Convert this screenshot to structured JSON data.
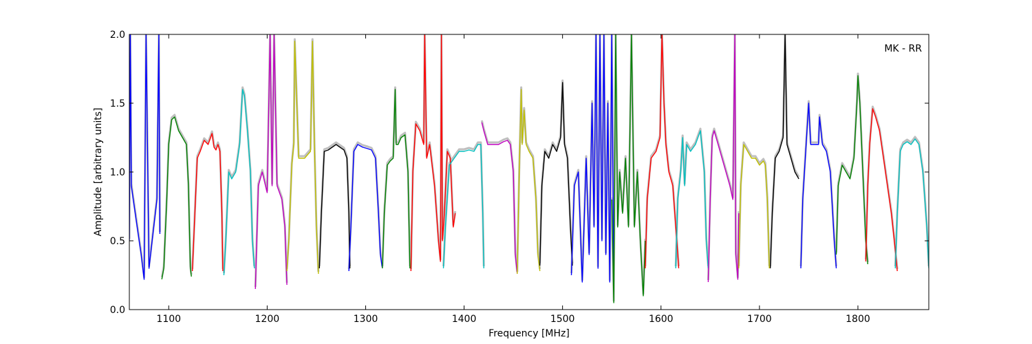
{
  "chart_data": {
    "type": "line",
    "annotation": "MK - RR",
    "xlabel": "Frequency [MHz]",
    "ylabel": "Amplitude [arbitrary units]",
    "xlim": [
      1060,
      1872
    ],
    "ylim": [
      0.0,
      2.0
    ],
    "grid": false,
    "x_ticks": [
      1100,
      1200,
      1300,
      1400,
      1500,
      1600,
      1700,
      1800
    ],
    "x_tick_labels": [
      "1100",
      "1200",
      "1300",
      "1400",
      "1500",
      "1600",
      "1700",
      "1800"
    ],
    "y_ticks": [
      0.0,
      0.5,
      1.0,
      1.5,
      2.0
    ],
    "y_tick_labels": [
      "0.0",
      "0.5",
      "1.0",
      "1.5",
      "2.0"
    ],
    "background_series_color": "#bfbfbf",
    "bands": [
      {
        "color": "#0000ff",
        "x": [
          1060,
          1061,
          1062,
          1064,
          1068,
          1072,
          1075,
          1077,
          1080,
          1084,
          1088,
          1090,
          1091
        ],
        "y": [
          0.5,
          2.0,
          0.9,
          0.8,
          0.6,
          0.4,
          0.22,
          2.0,
          0.3,
          0.55,
          0.8,
          2.0,
          0.55
        ]
      },
      {
        "color": "#008000",
        "x": [
          1093,
          1095,
          1098,
          1100,
          1103,
          1106,
          1110,
          1114,
          1118,
          1120,
          1122,
          1123
        ],
        "y": [
          0.22,
          0.3,
          0.8,
          1.2,
          1.38,
          1.4,
          1.3,
          1.25,
          1.2,
          0.9,
          0.3,
          0.24
        ]
      },
      {
        "color": "#ff0000",
        "x": [
          1124,
          1126,
          1129,
          1132,
          1136,
          1140,
          1144,
          1146,
          1148,
          1150,
          1152,
          1154,
          1155
        ],
        "y": [
          0.28,
          0.6,
          1.1,
          1.15,
          1.23,
          1.2,
          1.28,
          1.18,
          1.16,
          1.2,
          1.15,
          0.7,
          0.28
        ]
      },
      {
        "color": "#00bfbf",
        "x": [
          1156,
          1158,
          1161,
          1164,
          1168,
          1172,
          1175,
          1177,
          1180,
          1183,
          1185,
          1187
        ],
        "y": [
          0.25,
          0.5,
          1.0,
          0.95,
          1.0,
          1.2,
          1.6,
          1.55,
          1.3,
          1.0,
          0.5,
          0.3
        ]
      },
      {
        "color": "#bf00bf",
        "x": [
          1188,
          1189,
          1191,
          1195,
          1200,
          1203,
          1205,
          1207,
          1210,
          1215,
          1218,
          1220
        ],
        "y": [
          0.15,
          0.4,
          0.9,
          1.0,
          0.85,
          2.0,
          0.9,
          2.0,
          0.9,
          0.8,
          0.6,
          0.18
        ]
      },
      {
        "color": "#bfbf00",
        "x": [
          1220,
          1222,
          1225,
          1227,
          1228,
          1232,
          1238,
          1244,
          1246,
          1248,
          1250,
          1252
        ],
        "y": [
          0.28,
          0.5,
          1.05,
          1.2,
          1.95,
          1.1,
          1.1,
          1.15,
          1.95,
          1.2,
          0.6,
          0.26
        ]
      },
      {
        "color": "#000000",
        "x": [
          1253,
          1255,
          1258,
          1262,
          1266,
          1270,
          1274,
          1278,
          1281,
          1283,
          1284
        ],
        "y": [
          0.3,
          0.7,
          1.15,
          1.16,
          1.18,
          1.2,
          1.18,
          1.16,
          1.1,
          0.7,
          0.3
        ]
      },
      {
        "color": "#0000ff",
        "x": [
          1283,
          1285,
          1288,
          1292,
          1297,
          1302,
          1306,
          1310,
          1313,
          1315,
          1317
        ],
        "y": [
          0.28,
          0.6,
          1.15,
          1.2,
          1.18,
          1.17,
          1.16,
          1.1,
          0.7,
          0.4,
          0.3
        ]
      },
      {
        "color": "#008000",
        "x": [
          1317,
          1319,
          1322,
          1325,
          1328,
          1330,
          1331,
          1333,
          1336,
          1340,
          1343,
          1345
        ],
        "y": [
          0.3,
          0.7,
          1.05,
          1.08,
          1.1,
          1.6,
          1.2,
          1.2,
          1.25,
          1.27,
          1.0,
          0.3
        ]
      },
      {
        "color": "#ff0000",
        "x": [
          1346,
          1348,
          1351,
          1355,
          1359,
          1360,
          1362,
          1365,
          1370,
          1372,
          1374,
          1376,
          1377,
          1378,
          1380,
          1383,
          1386,
          1389,
          1391
        ],
        "y": [
          0.28,
          1.0,
          1.35,
          1.3,
          1.2,
          2.0,
          1.1,
          1.2,
          0.9,
          0.7,
          0.5,
          0.35,
          2.0,
          0.5,
          0.7,
          1.15,
          1.1,
          0.6,
          0.7
        ]
      },
      {
        "color": "#00bfbf",
        "x": [
          1379,
          1381,
          1385,
          1390,
          1395,
          1400,
          1405,
          1410,
          1414,
          1417,
          1419,
          1420
        ],
        "y": [
          0.3,
          0.6,
          1.05,
          1.1,
          1.15,
          1.15,
          1.16,
          1.15,
          1.2,
          1.2,
          0.7,
          0.3
        ]
      },
      {
        "color": "#bf00bf",
        "x": [
          1418,
          1420,
          1424,
          1430,
          1435,
          1440,
          1444,
          1447,
          1450,
          1452,
          1454
        ],
        "y": [
          1.36,
          1.3,
          1.2,
          1.2,
          1.2,
          1.22,
          1.23,
          1.2,
          1.0,
          0.4,
          0.26
        ]
      },
      {
        "color": "#bfbf00",
        "x": [
          1454,
          1456,
          1458,
          1459,
          1461,
          1463,
          1466,
          1470,
          1473,
          1475,
          1477
        ],
        "y": [
          0.26,
          1.0,
          1.6,
          1.2,
          1.45,
          1.2,
          1.15,
          1.1,
          0.8,
          0.4,
          0.28
        ]
      },
      {
        "color": "#000000",
        "x": [
          1477,
          1479,
          1482,
          1486,
          1490,
          1494,
          1498,
          1500,
          1502,
          1505,
          1508,
          1510
        ],
        "y": [
          0.32,
          0.9,
          1.15,
          1.1,
          1.2,
          1.15,
          1.25,
          1.65,
          1.2,
          1.1,
          0.6,
          0.32
        ]
      },
      {
        "color": "#0000ff",
        "x": [
          1509,
          1512,
          1516,
          1520,
          1524,
          1527,
          1530,
          1532,
          1534,
          1536,
          1538,
          1540,
          1542,
          1544,
          1546,
          1548,
          1550,
          1552
        ],
        "y": [
          0.25,
          0.9,
          1.0,
          0.2,
          1.1,
          0.4,
          1.5,
          0.6,
          2.0,
          0.3,
          2.0,
          0.5,
          2.0,
          0.4,
          1.5,
          0.2,
          2.0,
          0.3
        ]
      },
      {
        "color": "#008000",
        "x": [
          1550,
          1552,
          1554,
          1556,
          1558,
          1561,
          1564,
          1567,
          1570,
          1573,
          1576,
          1579,
          1582,
          1584
        ],
        "y": [
          0.8,
          0.05,
          2.0,
          0.6,
          1.0,
          0.7,
          1.1,
          0.6,
          2.0,
          0.6,
          1.0,
          0.5,
          0.1,
          0.5
        ]
      },
      {
        "color": "#ff0000",
        "x": [
          1584,
          1586,
          1590,
          1595,
          1599,
          1601,
          1603,
          1605,
          1608,
          1612,
          1616,
          1618
        ],
        "y": [
          0.3,
          0.8,
          1.1,
          1.15,
          1.25,
          2.0,
          1.5,
          1.2,
          1.0,
          0.9,
          0.5,
          0.3
        ]
      },
      {
        "color": "#00bfbf",
        "x": [
          1615,
          1617,
          1620,
          1622,
          1624,
          1626,
          1630,
          1635,
          1640,
          1644,
          1646,
          1648
        ],
        "y": [
          0.3,
          0.8,
          1.0,
          1.25,
          0.9,
          1.2,
          1.15,
          1.2,
          1.3,
          1.0,
          0.5,
          0.3
        ]
      },
      {
        "color": "#bf00bf",
        "x": [
          1648,
          1650,
          1652,
          1654,
          1658,
          1662,
          1666,
          1670,
          1673,
          1675,
          1676,
          1678,
          1679
        ],
        "y": [
          0.2,
          0.8,
          1.25,
          1.3,
          1.2,
          1.1,
          1.0,
          0.9,
          0.8,
          2.0,
          0.4,
          0.22,
          0.7
        ]
      },
      {
        "color": "#bfbf00",
        "x": [
          1679,
          1681,
          1684,
          1688,
          1692,
          1696,
          1700,
          1704,
          1706,
          1708,
          1710
        ],
        "y": [
          0.3,
          0.9,
          1.2,
          1.15,
          1.1,
          1.1,
          1.05,
          1.08,
          1.05,
          0.8,
          0.3
        ]
      },
      {
        "color": "#000000",
        "x": [
          1711,
          1713,
          1716,
          1720,
          1724,
          1726,
          1728,
          1732,
          1736,
          1740
        ],
        "y": [
          0.3,
          0.7,
          1.1,
          1.15,
          1.25,
          2.0,
          1.2,
          1.1,
          1.0,
          0.95
        ]
      },
      {
        "color": "#0000ff",
        "x": [
          1742,
          1744,
          1747,
          1750,
          1752,
          1756,
          1760,
          1761,
          1764,
          1768,
          1772,
          1776,
          1778
        ],
        "y": [
          0.3,
          0.8,
          1.15,
          1.5,
          1.2,
          1.2,
          1.2,
          1.4,
          1.2,
          1.15,
          1.0,
          0.5,
          0.3
        ]
      },
      {
        "color": "#008000",
        "x": [
          1778,
          1780,
          1784,
          1788,
          1792,
          1796,
          1799,
          1800,
          1802,
          1805,
          1808,
          1810
        ],
        "y": [
          0.4,
          0.9,
          1.05,
          1.0,
          0.95,
          1.1,
          1.5,
          1.7,
          1.5,
          1.0,
          0.5,
          0.33
        ]
      },
      {
        "color": "#ff0000",
        "x": [
          1808,
          1810,
          1812,
          1815,
          1818,
          1822,
          1826,
          1830,
          1834,
          1837,
          1840
        ],
        "y": [
          0.35,
          0.9,
          1.2,
          1.46,
          1.4,
          1.3,
          1.1,
          0.9,
          0.7,
          0.5,
          0.28
        ]
      },
      {
        "color": "#00bfbf",
        "x": [
          1838,
          1840,
          1843,
          1846,
          1850,
          1854,
          1858,
          1862,
          1866,
          1870,
          1872
        ],
        "y": [
          0.3,
          0.7,
          1.15,
          1.2,
          1.22,
          1.2,
          1.24,
          1.2,
          1.0,
          0.6,
          0.3
        ]
      }
    ]
  }
}
